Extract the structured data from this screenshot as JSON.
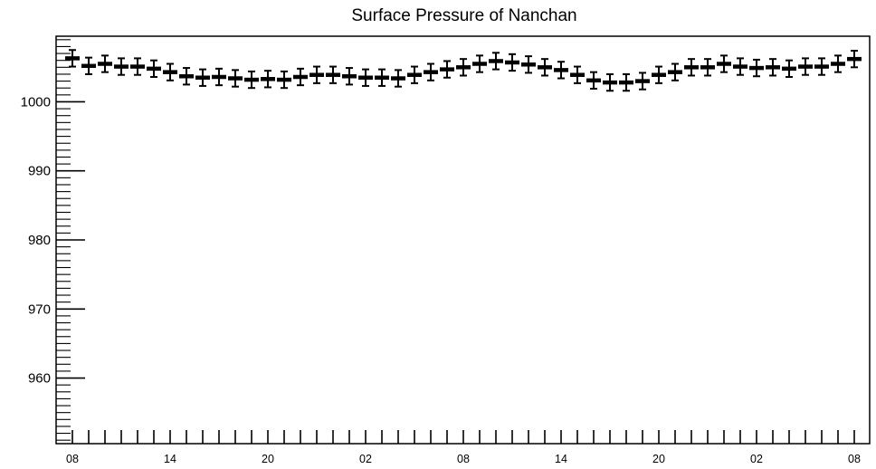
{
  "chart_data": {
    "type": "scatter",
    "title": "Surface Pressure of Nanchan",
    "xlabel": "",
    "ylabel": "",
    "x_tick_labels": [
      "08",
      "14",
      "20",
      "02",
      "08",
      "14",
      "20",
      "02",
      "08"
    ],
    "y_ticks": [
      960,
      970,
      980,
      990,
      1000
    ],
    "y_tick_labels": [
      "960",
      "970",
      "980",
      "990",
      "1000"
    ],
    "ylim": [
      950.5,
      1009.5
    ],
    "error_bar": 1.2,
    "grid": false,
    "legend": false,
    "series": [
      {
        "values": [
          1006.3,
          1005.2,
          1005.5,
          1005.1,
          1005.1,
          1004.8,
          1004.3,
          1003.7,
          1003.5,
          1003.6,
          1003.4,
          1003.2,
          1003.3,
          1003.2,
          1003.6,
          1003.9,
          1003.9,
          1003.7,
          1003.5,
          1003.5,
          1003.4,
          1003.9,
          1004.3,
          1004.7,
          1005.0,
          1005.5,
          1005.9,
          1005.7,
          1005.4,
          1005.0,
          1004.6,
          1003.9,
          1003.1,
          1002.8,
          1002.8,
          1003.0,
          1003.9,
          1004.3,
          1005.0,
          1005.0,
          1005.5,
          1005.1,
          1004.9,
          1005.0,
          1004.8,
          1005.1,
          1005.1,
          1005.5,
          1006.2
        ]
      }
    ]
  }
}
